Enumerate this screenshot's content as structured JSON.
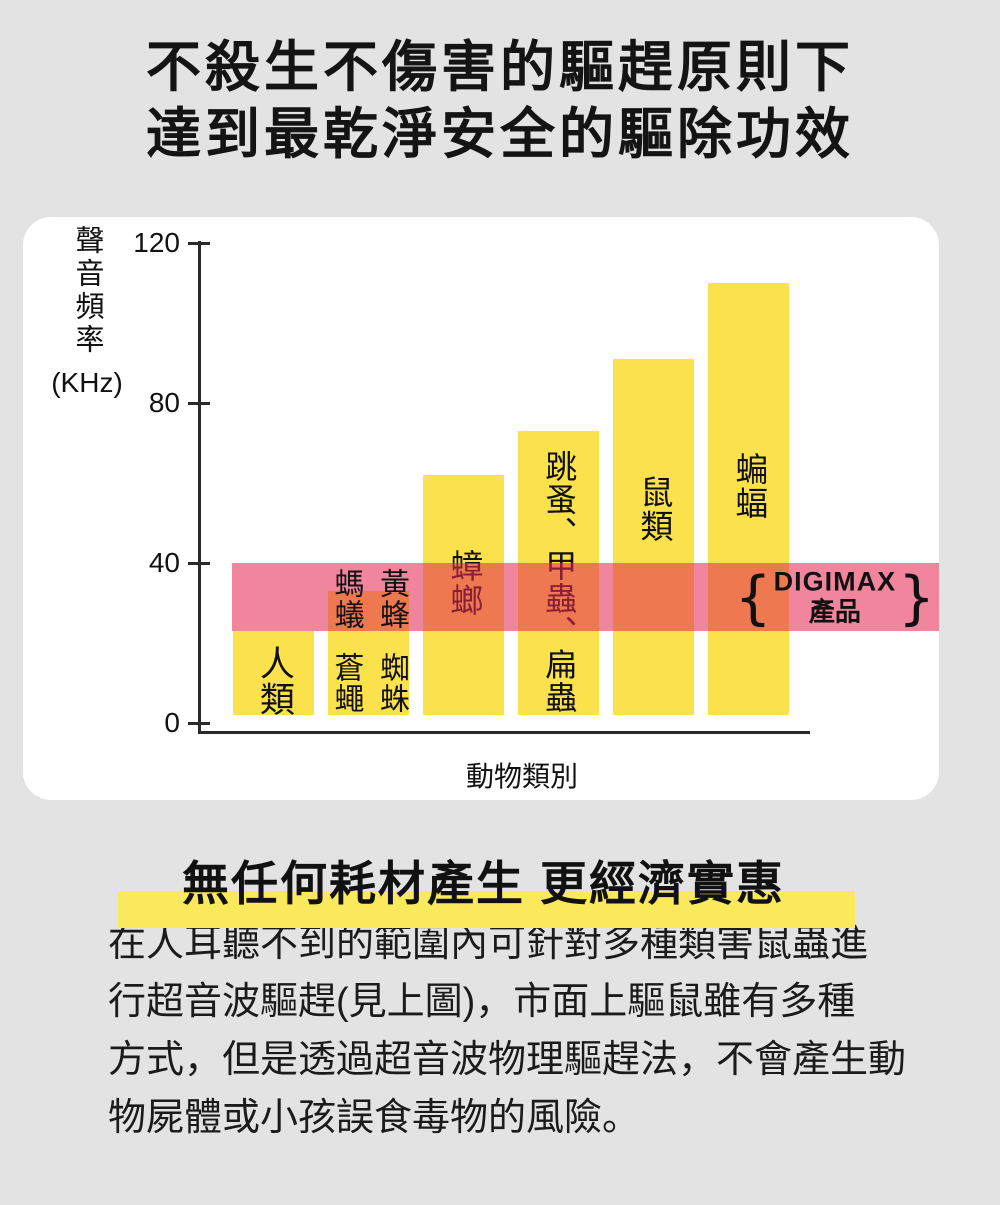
{
  "page": {
    "background": "#e3e3e3"
  },
  "title": {
    "line1": "不殺生不傷害的驅趕原則下",
    "line2": "達到最乾淨安全的驅除功效"
  },
  "chart_data": {
    "type": "bar",
    "xlabel": "動物類別",
    "ylabel": "聲音頻率",
    "y_unit": "(KHz)",
    "ylim": [
      0,
      120
    ],
    "yticks": [
      0,
      40,
      80,
      120
    ],
    "grid": false,
    "bar_color": "#fbe24d",
    "bar_base_khz": 2,
    "bars": [
      {
        "category": "人類",
        "top_khz": 23,
        "label_columns": [
          [
            "人類"
          ]
        ]
      },
      {
        "category": "螞蟻、蒼蠅、黃蜂、蜘蛛",
        "top_khz": 33,
        "label_columns": [
          [
            "螞蟻",
            "蒼蠅"
          ],
          [
            "黃蜂",
            "蜘蛛"
          ]
        ]
      },
      {
        "category": "蟑螂",
        "top_khz": 62,
        "label_columns": [
          [
            "蟑螂"
          ]
        ]
      },
      {
        "category": "跳蚤、甲蟲、扁蟲",
        "top_khz": 73,
        "label_columns": [
          [
            "跳蚤、甲蟲、扁蟲"
          ]
        ]
      },
      {
        "category": "鼠類",
        "top_khz": 91,
        "label_columns": [
          [
            "鼠類"
          ]
        ]
      },
      {
        "category": "蝙蝠",
        "top_khz": 110,
        "label_columns": [
          [
            "蝙蝠"
          ]
        ]
      }
    ],
    "band": {
      "from_khz": 23,
      "to_khz": 40,
      "color_over_white": "#f0859d",
      "color_over_bar": "#f08850",
      "overlay_rgba": "rgba(229,41,83,0.57)",
      "brace_left": "{",
      "brace_right": "}",
      "brand": "DIGIMAX",
      "product": "產品"
    }
  },
  "headline": {
    "text": "無任何耗材產生 更經濟實惠",
    "highlight_color": "#fae95c"
  },
  "body": {
    "lines": [
      "在人耳聽不到的範圍內可針對多種類害鼠蟲進",
      "行超音波驅趕(見上圖)，市面上驅鼠雖有多種",
      "方式，但是透過超音波物理驅趕法，不會產生動",
      "物屍體或小孩誤食毒物的風險。"
    ]
  }
}
